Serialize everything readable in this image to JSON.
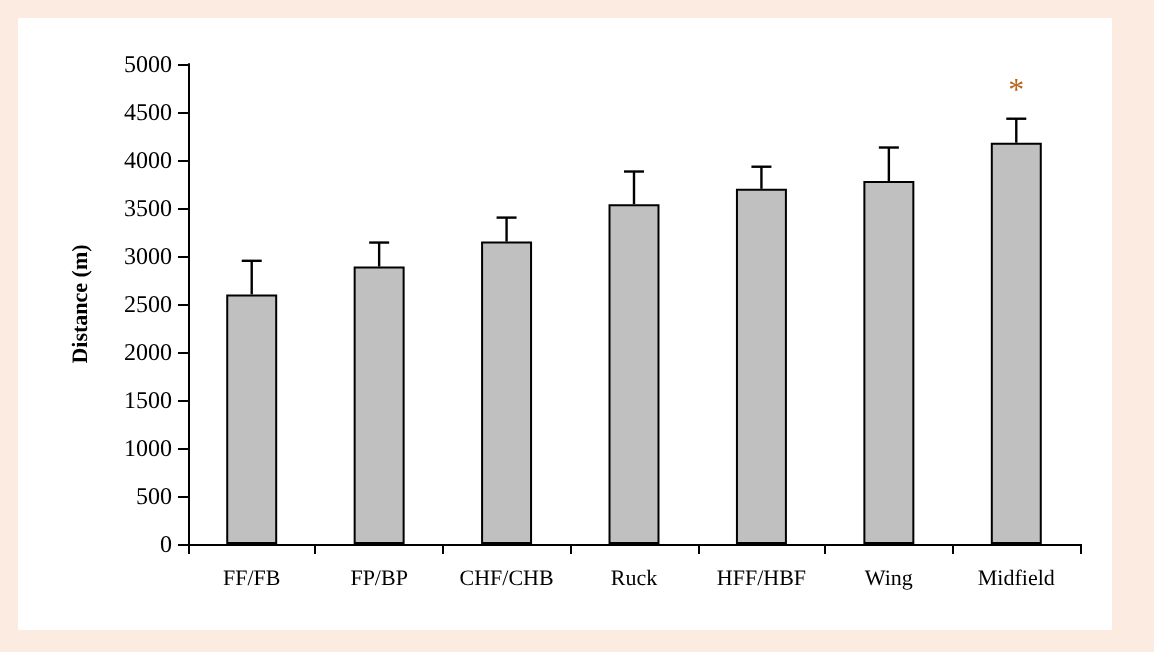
{
  "chart_data": {
    "type": "bar",
    "ylabel": "Distance (m)",
    "categories": [
      "FF/FB",
      "FP/BP",
      "CHF/CHB",
      "Ruck",
      "HFF/HBF",
      "Wing",
      "Midfield"
    ],
    "values": [
      2600,
      2890,
      3150,
      3540,
      3700,
      3780,
      4180
    ],
    "errors": [
      [
        2600,
        2950
      ],
      [
        2890,
        3140
      ],
      [
        3150,
        3400
      ],
      [
        3540,
        3880
      ],
      [
        3700,
        3930
      ],
      [
        3780,
        4130
      ],
      [
        4180,
        4430
      ]
    ],
    "color": "#c0c0c0",
    "ylim": [
      0,
      5000
    ],
    "yticks": [
      0,
      500,
      1000,
      1500,
      2000,
      2500,
      3000,
      3500,
      4000,
      4500,
      5000
    ],
    "annotations": [
      "*"
    ],
    "grid": false
  }
}
